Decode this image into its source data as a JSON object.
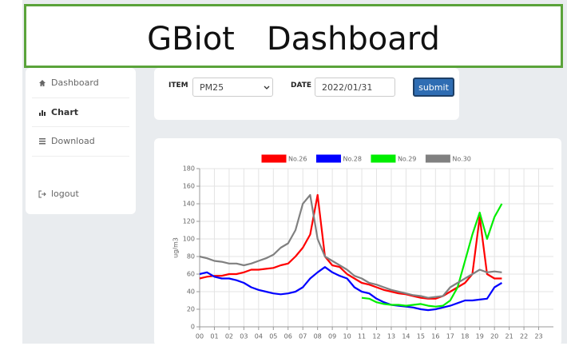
{
  "header": {
    "title": "GBiot　Dashboard"
  },
  "sidebar": {
    "items": [
      "Dashboard",
      "Chart",
      "Download",
      "logout"
    ]
  },
  "form": {
    "item_label": "ITEM",
    "item_value": "PM25",
    "date_label": "DATE",
    "date_value": "2022/01/31",
    "submit": "submit"
  },
  "chart_data": {
    "type": "line",
    "ylabel": "ug/m3",
    "x": [
      0,
      0.5,
      1,
      1.5,
      2,
      2.5,
      3,
      3.5,
      4,
      4.5,
      5,
      5.5,
      6,
      6.5,
      7,
      7.5,
      8,
      8.5,
      9,
      9.5,
      10,
      10.5,
      11,
      11.5,
      12,
      12.5,
      13,
      13.5,
      14,
      14.5,
      15,
      15.5,
      16,
      16.5,
      17,
      17.5,
      18,
      18.5,
      19,
      19.5,
      20,
      20.5
    ],
    "series": [
      {
        "name": "No.26",
        "color": "#ff0000",
        "values": [
          55,
          57,
          58,
          58,
          60,
          60,
          62,
          65,
          65,
          66,
          67,
          70,
          72,
          80,
          90,
          105,
          150,
          80,
          70,
          68,
          60,
          55,
          50,
          48,
          45,
          42,
          40,
          38,
          37,
          35,
          33,
          32,
          32,
          35,
          40,
          45,
          50,
          60,
          125,
          60,
          55,
          55
        ]
      },
      {
        "name": "No.28",
        "color": "#0000ff",
        "values": [
          60,
          62,
          57,
          55,
          55,
          53,
          50,
          45,
          42,
          40,
          38,
          37,
          38,
          40,
          45,
          55,
          62,
          68,
          62,
          58,
          55,
          45,
          40,
          38,
          32,
          28,
          25,
          24,
          23,
          22,
          20,
          19,
          20,
          22,
          24,
          27,
          30,
          30,
          31,
          32,
          45,
          50
        ]
      },
      {
        "name": "No.29",
        "color": "#00ee00",
        "values": [
          null,
          null,
          null,
          null,
          null,
          null,
          null,
          null,
          null,
          null,
          null,
          null,
          null,
          null,
          null,
          null,
          null,
          null,
          null,
          null,
          null,
          null,
          33,
          32,
          28,
          26,
          25,
          25,
          24,
          25,
          26,
          24,
          23,
          24,
          30,
          45,
          75,
          105,
          130,
          100,
          125,
          140
        ]
      },
      {
        "name": "No.30",
        "color": "#808080",
        "values": [
          80,
          78,
          75,
          74,
          72,
          72,
          70,
          72,
          75,
          78,
          82,
          90,
          95,
          110,
          140,
          150,
          100,
          80,
          75,
          70,
          65,
          58,
          55,
          50,
          48,
          45,
          42,
          40,
          38,
          36,
          35,
          33,
          34,
          35,
          45,
          50,
          55,
          60,
          65,
          62,
          63,
          62
        ]
      }
    ],
    "xlim": [
      0,
      24
    ],
    "xticks": [
      {
        "value": 0,
        "label": "00"
      },
      {
        "value": 1,
        "label": "01"
      },
      {
        "value": 2,
        "label": "02"
      },
      {
        "value": 3,
        "label": "03"
      },
      {
        "value": 4,
        "label": "04"
      },
      {
        "value": 5,
        "label": "05"
      },
      {
        "value": 6,
        "label": "06"
      },
      {
        "value": 7,
        "label": "07"
      },
      {
        "value": 8,
        "label": "08"
      },
      {
        "value": 9,
        "label": "09"
      },
      {
        "value": 10,
        "label": "10"
      },
      {
        "value": 11,
        "label": "11"
      },
      {
        "value": 12,
        "label": "12"
      },
      {
        "value": 13,
        "label": "13"
      },
      {
        "value": 14,
        "label": "14"
      },
      {
        "value": 15,
        "label": "15"
      },
      {
        "value": 16,
        "label": "16"
      },
      {
        "value": 17,
        "label": "17"
      },
      {
        "value": 18,
        "label": "18"
      },
      {
        "value": 19,
        "label": "19"
      },
      {
        "value": 20,
        "label": "20"
      },
      {
        "value": 21,
        "label": "21"
      },
      {
        "value": 22,
        "label": "22"
      },
      {
        "value": 23,
        "label": "23"
      }
    ],
    "ylim": [
      0,
      180
    ],
    "yticks": [
      0,
      20,
      40,
      60,
      80,
      100,
      120,
      140,
      160,
      180
    ],
    "grid": true,
    "legend": "top"
  }
}
